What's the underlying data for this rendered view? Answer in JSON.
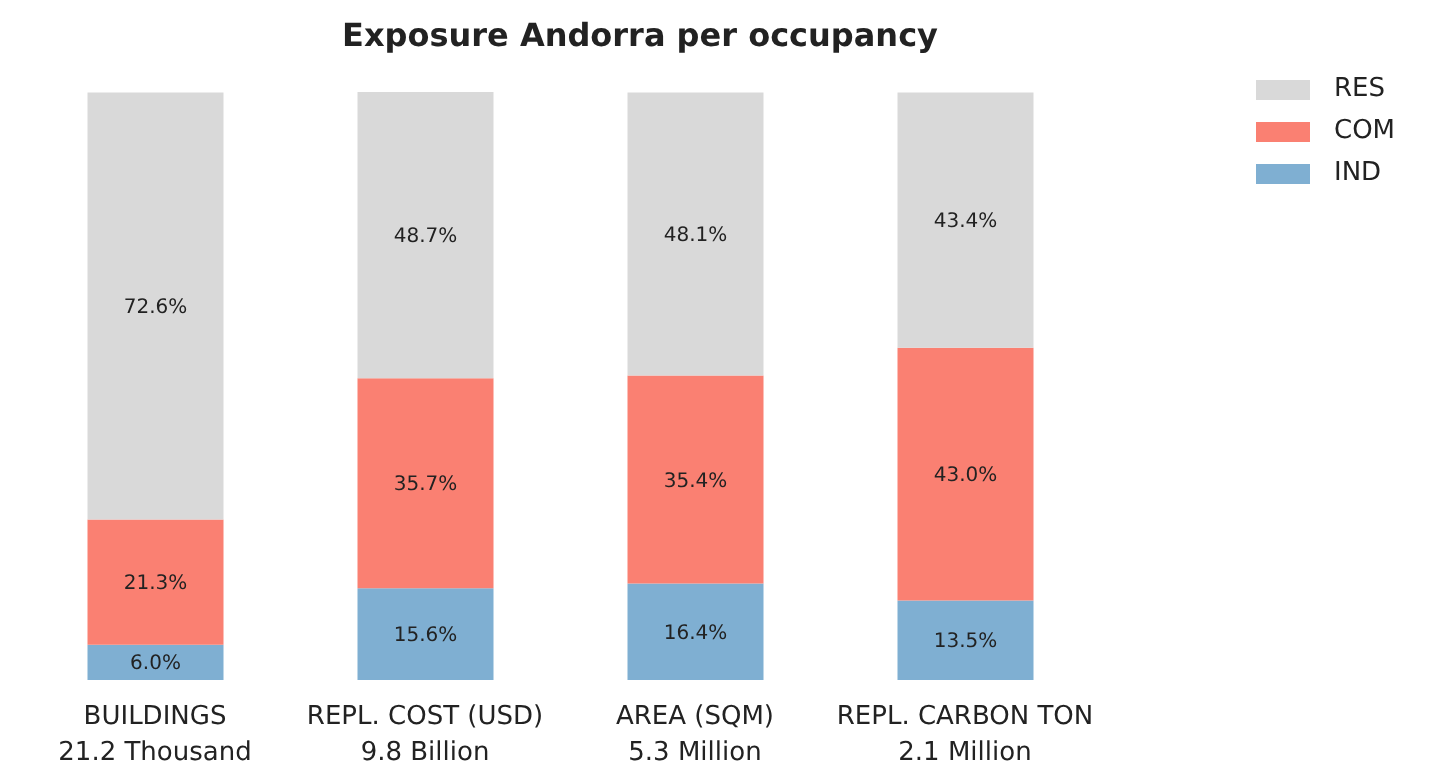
{
  "chart_data": {
    "type": "bar",
    "title": "Exposure Andorra per occupancy",
    "stacked": true,
    "tick_labels": "x",
    "legend": "top right",
    "categories": [
      "BUILDINGS\n21.2 Thousand",
      "REPL. COST (USD)\n9.8 Billion",
      "AREA (SQM)\n5.3 Million",
      "REPL. CARBON TON\n2.1 Million"
    ],
    "series": [
      {
        "name": "IND",
        "color": "#7fafd2",
        "values": [
          6.0,
          15.6,
          16.4,
          13.5
        ],
        "value_labels": [
          "6.0%",
          "15.6%",
          "16.4%",
          "13.5%"
        ]
      },
      {
        "name": "COM",
        "color": "#fa8072",
        "values": [
          21.3,
          35.7,
          35.4,
          43.0
        ],
        "value_labels": [
          "21.3%",
          "35.7%",
          "35.4%",
          "43.0%"
        ]
      },
      {
        "name": "RES",
        "color": "#d9d9d9",
        "values": [
          72.6,
          48.7,
          48.1,
          43.4
        ],
        "value_labels": [
          "72.6%",
          "48.7%",
          "48.1%",
          "43.4%"
        ]
      }
    ]
  }
}
